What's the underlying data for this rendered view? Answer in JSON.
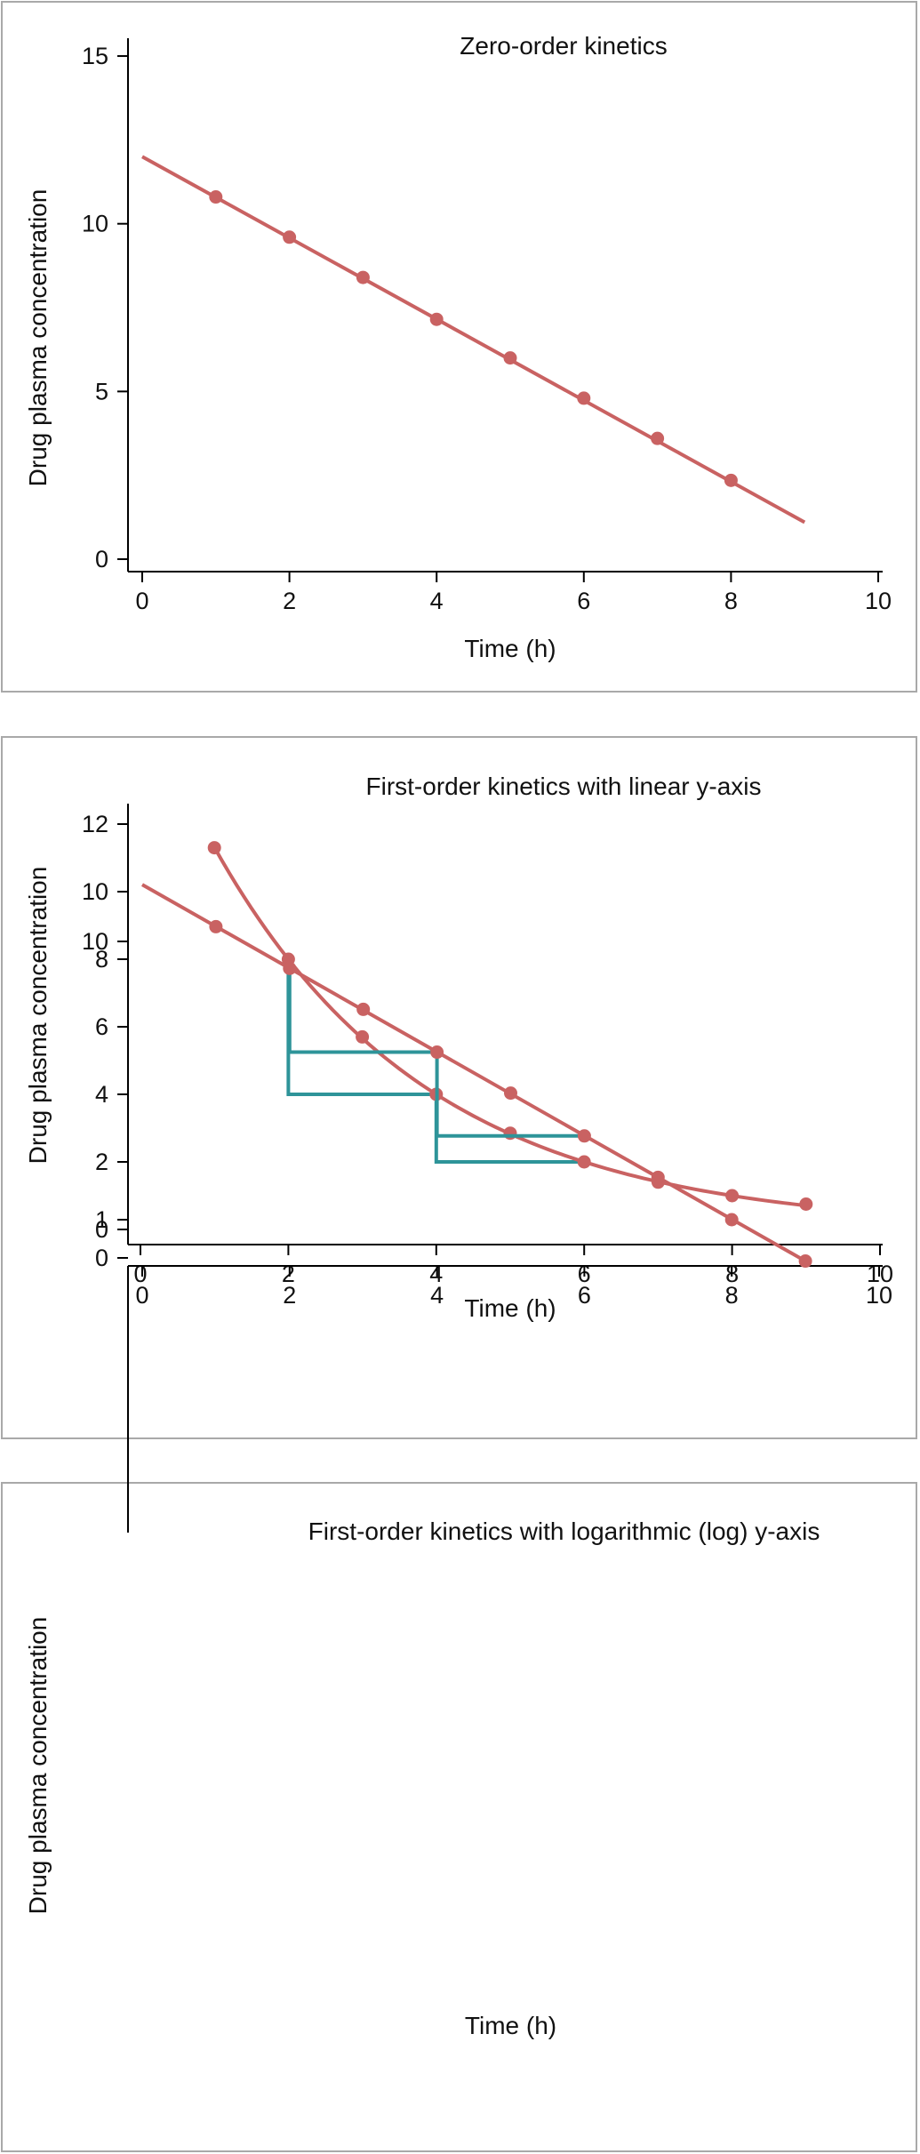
{
  "colors": {
    "series": "#c96262",
    "half_life_steps": "#2e9499",
    "panel_border": "#a9a9a9"
  },
  "chart_data": [
    {
      "type": "line",
      "title": "Zero-order kinetics",
      "xlabel": "Time (h)",
      "ylabel": "Drug plasma concentration",
      "x_ticks": [
        0,
        2,
        4,
        6,
        8,
        10
      ],
      "y_ticks": [
        0,
        5,
        10,
        15
      ],
      "xlim": [
        0,
        10
      ],
      "ylim": [
        0,
        15
      ],
      "y_scale": "linear",
      "grid": false,
      "line": {
        "x": [
          0,
          9
        ],
        "y": [
          12,
          1.1
        ]
      },
      "points": {
        "x": [
          1,
          2,
          3,
          4,
          5,
          6,
          7,
          8
        ],
        "y": [
          10.8,
          9.6,
          8.4,
          7.15,
          6.0,
          4.8,
          3.6,
          2.35
        ]
      },
      "steps": []
    },
    {
      "type": "line",
      "title": "First-order kinetics with linear y-axis",
      "xlabel": "Time (h)",
      "ylabel": "Drug plasma concentration",
      "x_ticks": [
        0,
        2,
        4,
        6,
        8,
        10
      ],
      "y_ticks": [
        0,
        2,
        4,
        6,
        8,
        10,
        12
      ],
      "xlim": [
        0,
        10
      ],
      "ylim": [
        0,
        12
      ],
      "y_scale": "linear",
      "grid": false,
      "curve": {
        "x0": 1,
        "x1": 9,
        "decay": {
          "c2": 8,
          "half_life": 2,
          "floor": 0
        }
      },
      "points": {
        "x": [
          1,
          2,
          3,
          4,
          5,
          6,
          7,
          8,
          9
        ],
        "y": [
          11.3,
          8.0,
          5.7,
          4.0,
          2.85,
          2.0,
          1.4,
          1.0,
          0.75
        ]
      },
      "steps": [
        {
          "x": [
            2,
            2,
            4,
            4,
            6
          ],
          "y": [
            8,
            4,
            4,
            2,
            2
          ]
        }
      ]
    },
    {
      "type": "line",
      "title": "First-order kinetics with logarithmic (log) y-axis",
      "xlabel": "Time (h)",
      "ylabel": "Drug plasma concentration",
      "x_ticks": [
        0,
        2,
        4,
        6,
        8,
        10
      ],
      "y_ticks": [
        0,
        1,
        10
      ],
      "xlim": [
        0,
        10
      ],
      "y_scale": "log",
      "grid": false,
      "line": {
        "x": [
          0,
          9
        ],
        "y": [
          16,
          0.71
        ]
      },
      "points": {
        "x": [
          1,
          2,
          3,
          4,
          5,
          6,
          7,
          8,
          9
        ],
        "y": [
          11.3,
          8.0,
          5.7,
          4.0,
          2.85,
          2.0,
          1.42,
          1.0,
          0.71
        ]
      },
      "steps": [
        {
          "x": [
            2,
            2,
            4,
            4,
            6
          ],
          "y": [
            8,
            4,
            4,
            2,
            2
          ]
        }
      ]
    }
  ]
}
